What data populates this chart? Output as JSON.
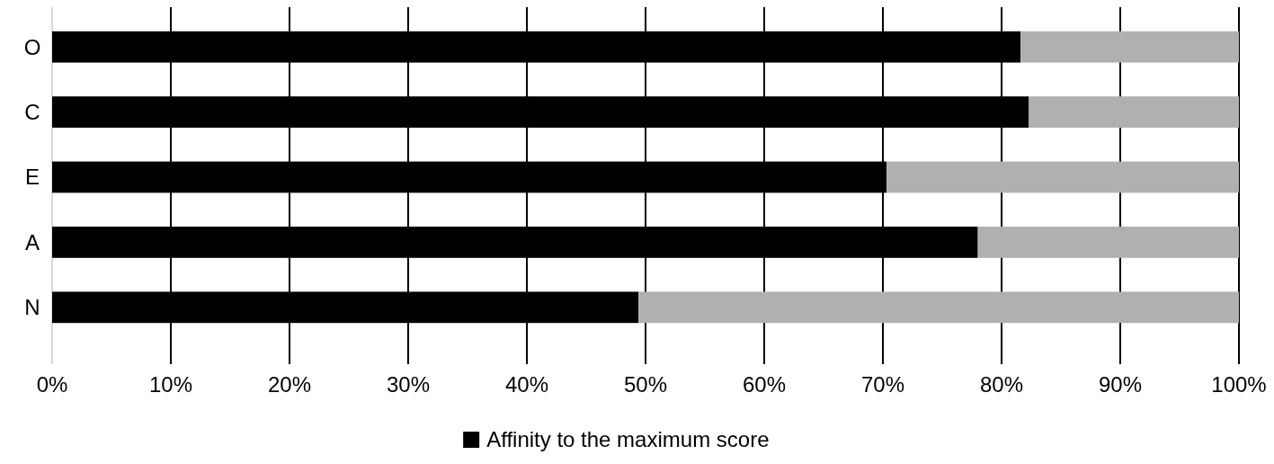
{
  "chart_data": {
    "type": "bar",
    "orientation": "horizontal",
    "stacked": true,
    "categories": [
      "O",
      "C",
      "E",
      "A",
      "N"
    ],
    "series": [
      {
        "name": "Affinity to the maximum score",
        "color": "#000000",
        "values": [
          81.6,
          82.3,
          70.3,
          78.0,
          49.4
        ]
      },
      {
        "color": "#b0b0b0",
        "values": [
          18.4,
          17.7,
          29.7,
          22.0,
          50.6
        ]
      }
    ],
    "xlim": [
      0,
      100
    ],
    "xticks": [
      {
        "value": 0,
        "label": "0%"
      },
      {
        "value": 10,
        "label": "10%"
      },
      {
        "value": 20,
        "label": "20%"
      },
      {
        "value": 30,
        "label": "30%"
      },
      {
        "value": 40,
        "label": "40%"
      },
      {
        "value": 50,
        "label": "50%"
      },
      {
        "value": 60,
        "label": "60%"
      },
      {
        "value": 70,
        "label": "70%"
      },
      {
        "value": 80,
        "label": "80%"
      },
      {
        "value": 90,
        "label": "90%"
      },
      {
        "value": 100,
        "label": "100%"
      }
    ],
    "grid": "x",
    "legend": "bottom"
  }
}
